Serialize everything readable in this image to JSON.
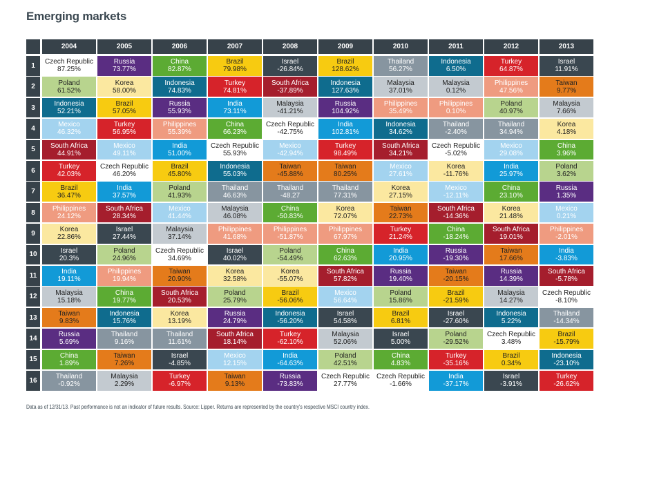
{
  "title": "Emerging markets",
  "footnote": "Data as of 12/31/13. Past performance is not an indicator of future results. Source: Lipper.  Returns are represented by the country's respective MSCI country index.",
  "country_colors": {
    "Czech Republic": {
      "bg": "#ffffff",
      "fg": "#222222"
    },
    "Russia": {
      "bg": "#5a2d82",
      "fg": "#ffffff"
    },
    "China": {
      "bg": "#5cab33",
      "fg": "#ffffff"
    },
    "Brazil": {
      "bg": "#f7cb11",
      "fg": "#222222"
    },
    "Israel": {
      "bg": "#3a4750",
      "fg": "#ffffff"
    },
    "Thailand": {
      "bg": "#8795a0",
      "fg": "#ffffff"
    },
    "Indonesia": {
      "bg": "#0f6c8e",
      "fg": "#ffffff"
    },
    "Turkey": {
      "bg": "#d6232a",
      "fg": "#ffffff"
    },
    "Poland": {
      "bg": "#b8d48e",
      "fg": "#222222"
    },
    "Korea": {
      "bg": "#fbe8a0",
      "fg": "#222222"
    },
    "South Africa": {
      "bg": "#a51e2d",
      "fg": "#ffffff"
    },
    "Malaysia": {
      "bg": "#c3cad0",
      "fg": "#222222"
    },
    "Philippines": {
      "bg": "#ef9b80",
      "fg": "#ffffff"
    },
    "Taiwan": {
      "bg": "#e47b1b",
      "fg": "#222222"
    },
    "Mexico": {
      "bg": "#a3d3ef",
      "fg": "#ffffff"
    },
    "India": {
      "bg": "#129ad7",
      "fg": "#ffffff"
    }
  },
  "chart_data": {
    "type": "table",
    "years": [
      "2004",
      "2005",
      "2006",
      "2007",
      "2008",
      "2009",
      "2010",
      "2011",
      "2012",
      "2013"
    ],
    "ranks": [
      "1",
      "2",
      "3",
      "4",
      "5",
      "6",
      "7",
      "8",
      "9",
      "10",
      "11",
      "12",
      "13",
      "14",
      "15",
      "16"
    ],
    "columns": [
      [
        [
          "Czech Republic",
          "87.25%"
        ],
        [
          "Poland",
          "61.52%"
        ],
        [
          "Indonesia",
          "52.21%"
        ],
        [
          "Mexico",
          "46.32%"
        ],
        [
          "South Africa",
          "44.91%"
        ],
        [
          "Turkey",
          "42.03%"
        ],
        [
          "Brazil",
          "36.47%"
        ],
        [
          "Philippines",
          "24.12%"
        ],
        [
          "Korea",
          "22.86%"
        ],
        [
          "Israel",
          "20.3%"
        ],
        [
          "India",
          "19.11%"
        ],
        [
          "Malaysia",
          "15.18%"
        ],
        [
          "Taiwan",
          "9.83%"
        ],
        [
          "Russia",
          "5.69%"
        ],
        [
          "China",
          "1.89%"
        ],
        [
          "Thailand",
          "-0.92%"
        ]
      ],
      [
        [
          "Russia",
          "73.77%"
        ],
        [
          "Korea",
          "58.00%"
        ],
        [
          "Brazil",
          "57.05%"
        ],
        [
          "Turkey",
          "56.95%"
        ],
        [
          "Mexico",
          "49.11%"
        ],
        [
          "Czech Republic",
          "46.20%"
        ],
        [
          "India",
          "37.57%"
        ],
        [
          "South Africa",
          "28.34%"
        ],
        [
          "Israel",
          "27.44%"
        ],
        [
          "Poland",
          "24.96%"
        ],
        [
          "Philippines",
          "19.94%"
        ],
        [
          "China",
          "19.77%"
        ],
        [
          "Indonesia",
          "15.76%"
        ],
        [
          "Thailand",
          "9.16%"
        ],
        [
          "Taiwan",
          "7.26%"
        ],
        [
          "Malaysia",
          "2.29%"
        ]
      ],
      [
        [
          "China",
          "82.87%"
        ],
        [
          "Indonesia",
          "74.83%"
        ],
        [
          "Russia",
          "55.93%"
        ],
        [
          "Philippines",
          "55.39%"
        ],
        [
          "India",
          "51.00%"
        ],
        [
          "Brazil",
          "45.80%"
        ],
        [
          "Poland",
          "41.93%"
        ],
        [
          "Mexico",
          "41.44%"
        ],
        [
          "Malaysia",
          "37.14%"
        ],
        [
          "Czech Republic",
          "34.69%"
        ],
        [
          "Taiwan",
          "20.90%"
        ],
        [
          "South Africa",
          "20.53%"
        ],
        [
          "Korea",
          "13.19%"
        ],
        [
          "Thailand",
          "11.61%"
        ],
        [
          "Israel",
          "-4.85%"
        ],
        [
          "Turkey",
          "-6.97%"
        ]
      ],
      [
        [
          "Brazil",
          "79.98%"
        ],
        [
          "Turkey",
          "74.81%"
        ],
        [
          "India",
          "73.11%"
        ],
        [
          "China",
          "66.23%"
        ],
        [
          "Czech Republic",
          "55.93%"
        ],
        [
          "Indonesia",
          "55.03%"
        ],
        [
          "Thailand",
          "46.63%"
        ],
        [
          "Malaysia",
          "46.08%"
        ],
        [
          "Philippines",
          "41.68%"
        ],
        [
          "Israel",
          "40.02%"
        ],
        [
          "Korea",
          "32.58%"
        ],
        [
          "Poland",
          "25.79%"
        ],
        [
          "Russia",
          "24.79%"
        ],
        [
          "South Africa",
          "18.14%"
        ],
        [
          "Mexico",
          "12.15%"
        ],
        [
          "Taiwan",
          "9.13%"
        ]
      ],
      [
        [
          "Israel",
          "-26.84%"
        ],
        [
          "South Africa",
          "-37.89%"
        ],
        [
          "Malaysia",
          "-41.21%"
        ],
        [
          "Czech Republic",
          "-42.75%"
        ],
        [
          "Mexico",
          "-42.94%"
        ],
        [
          "Taiwan",
          "-45.88%"
        ],
        [
          "Thailand",
          "-48.27"
        ],
        [
          "China",
          "-50.83%"
        ],
        [
          "Philippines",
          "-51.87%"
        ],
        [
          "Poland",
          "-54.49%"
        ],
        [
          "Korea",
          "-55.07%"
        ],
        [
          "Brazil",
          "-56.06%"
        ],
        [
          "Indonesia",
          "-56.20%"
        ],
        [
          "Turkey",
          "-62.10%"
        ],
        [
          "India",
          "-64.63%"
        ],
        [
          "Russia",
          "-73.83%"
        ]
      ],
      [
        [
          "Brazil",
          "128.62%"
        ],
        [
          "Indonesia",
          "127.63%"
        ],
        [
          "Russia",
          "104.92%"
        ],
        [
          "India",
          "102.81%"
        ],
        [
          "Turkey",
          "98.49%"
        ],
        [
          "Taiwan",
          "80.25%"
        ],
        [
          "Thailand",
          "77.31%"
        ],
        [
          "Korea",
          "72.07%"
        ],
        [
          "Philippines",
          "67.97%"
        ],
        [
          "China",
          "62.63%"
        ],
        [
          "South Africa",
          "57.82%"
        ],
        [
          "Mexico",
          "56.64%"
        ],
        [
          "Israel",
          "54.58%"
        ],
        [
          "Malaysia",
          "52.06%"
        ],
        [
          "Poland",
          "42.51%"
        ],
        [
          "Czech Republic",
          "27.77%"
        ]
      ],
      [
        [
          "Thailand",
          "56.27%"
        ],
        [
          "Malaysia",
          "37.01%"
        ],
        [
          "Philippines",
          "35.49%"
        ],
        [
          "Indonesia",
          "34.62%"
        ],
        [
          "South Africa",
          "34.21%"
        ],
        [
          "Mexico",
          "27.61%"
        ],
        [
          "Korea",
          "27.15%"
        ],
        [
          "Taiwan",
          "22.73%"
        ],
        [
          "Turkey",
          "21.24%"
        ],
        [
          "India",
          "20.95%"
        ],
        [
          "Russia",
          "19.40%"
        ],
        [
          "Poland",
          "15.86%"
        ],
        [
          "Brazil",
          "6.81%"
        ],
        [
          "Israel",
          "5.00%"
        ],
        [
          "China",
          "4.83%"
        ],
        [
          "Czech Republic",
          "-1.66%"
        ]
      ],
      [
        [
          "Indonesia",
          "6.50%"
        ],
        [
          "Malaysia",
          "0.12%"
        ],
        [
          "Philippines",
          "0.10%"
        ],
        [
          "Thailand",
          "-2.40%"
        ],
        [
          "Czech Republic",
          "-5.02%"
        ],
        [
          "Korea",
          "-11.76%"
        ],
        [
          "Mexico",
          "-12.11%"
        ],
        [
          "South Africa",
          "-14.36%"
        ],
        [
          "China",
          "-18.24%"
        ],
        [
          "Russia",
          "-19.30%"
        ],
        [
          "Taiwan",
          "-20.15%"
        ],
        [
          "Brazil",
          "-21.59%"
        ],
        [
          "Israel",
          "-27.60%"
        ],
        [
          "Poland",
          "-29.52%"
        ],
        [
          "Turkey",
          "-35.16%"
        ],
        [
          "India",
          "-37.17%"
        ]
      ],
      [
        [
          "Turkey",
          "64.87%"
        ],
        [
          "Philippines",
          "47.56%"
        ],
        [
          "Poland",
          "40.97%"
        ],
        [
          "Thailand",
          "34.94%"
        ],
        [
          "Mexico",
          "29.08%"
        ],
        [
          "India",
          "25.97%"
        ],
        [
          "China",
          "23.10%"
        ],
        [
          "Korea",
          "21.48%"
        ],
        [
          "South Africa",
          "19.01%"
        ],
        [
          "Taiwan",
          "17.66%"
        ],
        [
          "Russia",
          "14.39%"
        ],
        [
          "Malaysia",
          "14.27%"
        ],
        [
          "Indonesia",
          "5.22%"
        ],
        [
          "Czech Republic",
          "3.48%"
        ],
        [
          "Brazil",
          "0.34%"
        ],
        [
          "Israel",
          "-3.91%"
        ]
      ],
      [
        [
          "Israel",
          "11.91%"
        ],
        [
          "Taiwan",
          "9.77%"
        ],
        [
          "Malaysia",
          "7.66%"
        ],
        [
          "Korea",
          "4.18%"
        ],
        [
          "China",
          "3.96%"
        ],
        [
          "Poland",
          "3.62%"
        ],
        [
          "Russia",
          "1.35%"
        ],
        [
          "Mexico",
          "0.21%"
        ],
        [
          "Philippines",
          "-2.01%"
        ],
        [
          "India",
          "-3.83%"
        ],
        [
          "South Africa",
          "-5.78%"
        ],
        [
          "Czech Republic",
          "-8.10%"
        ],
        [
          "Thailand",
          "-14.34%"
        ],
        [
          "Brazil",
          "-15.79%"
        ],
        [
          "Indonesia",
          "-23.10%"
        ],
        [
          "Turkey",
          "-26.62%"
        ]
      ]
    ]
  }
}
